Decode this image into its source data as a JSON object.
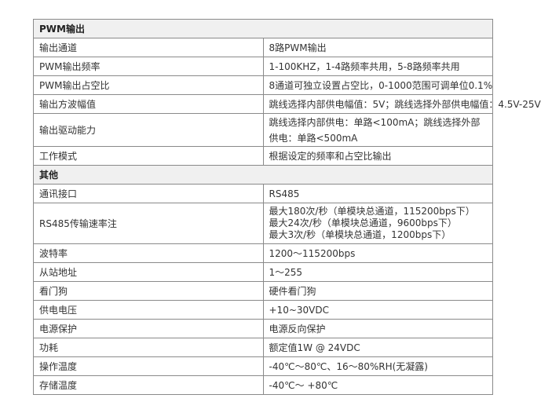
{
  "sections": [
    {
      "title": "PWM输出",
      "rows": [
        {
          "key": "输出通道",
          "value": "8路PWM输出"
        },
        {
          "key": "PWM输出频率",
          "value": "1-100KHZ，1-4路频率共用，5-8路频率共用"
        },
        {
          "key": "PWM输出占空比",
          "value": "8通道可独立设置占空比，0-1000范围可调单位0.1%"
        },
        {
          "key": "输出方波幅值",
          "value": "跳线选择内部供电幅值：5V；跳线选择外部供电幅值：4.5V-25V"
        },
        {
          "key": "输出驱动能力",
          "value": "跳线选择内部供电：单路<100mA；跳线选择外部供电：单路<500mA"
        },
        {
          "key": "工作模式",
          "value": "根据设定的频率和占空比输出"
        }
      ]
    },
    {
      "title": "其他",
      "rows": [
        {
          "key": "通讯接口",
          "value": "RS485"
        },
        {
          "key": "RS485传输速率注",
          "lines": [
            "最大180次/秒（单模块总通道，115200bps下）",
            "最大24次/秒（单模块总通道，9600bps下）",
            "最大3次/秒（单模块总通道，1200bps下）"
          ]
        },
        {
          "key": "波特率",
          "value": "1200～115200bps"
        },
        {
          "key": "从站地址",
          "value": "1～255"
        },
        {
          "key": "看门狗",
          "value": "硬件看门狗"
        },
        {
          "key": "供电电压",
          "value": "+10~30VDC"
        },
        {
          "key": "电源保护",
          "value": "电源反向保护"
        },
        {
          "key": "功耗",
          "value": "额定值1W @ 24VDC"
        },
        {
          "key": "操作温度",
          "value": "-40℃～80℃、16～80%RH(无凝露)"
        },
        {
          "key": "存储温度",
          "value": "-40℃～ +80℃"
        }
      ]
    }
  ]
}
